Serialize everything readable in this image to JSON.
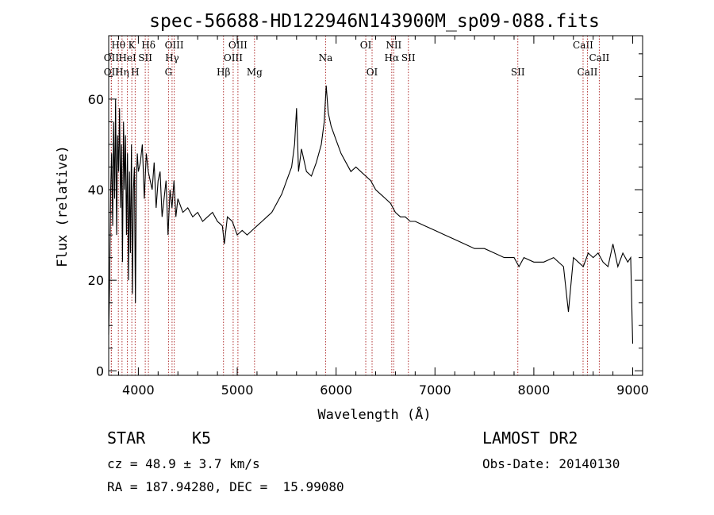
{
  "header": {
    "title": "spec-56688-HD122946N143900M_sp09-088.fits"
  },
  "footer": {
    "class_label": "STAR",
    "subclass": "K5",
    "survey": "LAMOST DR2",
    "cz": "cz = 48.9 ± 3.7 km/s",
    "obs_date": "Obs-Date: 20140130",
    "coords": "RA = 187.94280, DEC =  15.99080"
  },
  "chart_data": {
    "type": "line",
    "title": "spec-56688-HD122946N143900M_sp09-088.fits",
    "xlabel": "Wavelength (Å)",
    "ylabel": "Flux (relative)",
    "xlim": [
      3700,
      9100
    ],
    "ylim": [
      -1,
      74
    ],
    "xticks": [
      4000,
      5000,
      6000,
      7000,
      8000,
      9000
    ],
    "yticks": [
      0,
      20,
      40,
      60
    ],
    "grid": false,
    "line_color": "#000000",
    "marker_color": "#b03030",
    "spectral_lines": [
      {
        "name": "OII",
        "wavelength": 3727,
        "row": 3
      },
      {
        "name": "Hθ",
        "wavelength": 3798,
        "row": 1
      },
      {
        "name": "OII",
        "wavelength": 3727,
        "row": 2
      },
      {
        "name": "Hη",
        "wavelength": 3835,
        "row": 3
      },
      {
        "name": "HeI",
        "wavelength": 3889,
        "row": 2
      },
      {
        "name": "K",
        "wavelength": 3934,
        "row": 1
      },
      {
        "name": "H",
        "wavelength": 3968,
        "row": 3
      },
      {
        "name": "SII",
        "wavelength": 4070,
        "row": 2
      },
      {
        "name": "Hδ",
        "wavelength": 4102,
        "row": 1
      },
      {
        "name": "G",
        "wavelength": 4305,
        "row": 3
      },
      {
        "name": "Hγ",
        "wavelength": 4341,
        "row": 2
      },
      {
        "name": "OIII",
        "wavelength": 4363,
        "row": 1
      },
      {
        "name": "Hβ",
        "wavelength": 4861,
        "row": 3
      },
      {
        "name": "OIII",
        "wavelength": 4959,
        "row": 2
      },
      {
        "name": "OIII",
        "wavelength": 5007,
        "row": 1
      },
      {
        "name": "Mg",
        "wavelength": 5175,
        "row": 3
      },
      {
        "name": "Na",
        "wavelength": 5894,
        "row": 2
      },
      {
        "name": "OI",
        "wavelength": 6300,
        "row": 1
      },
      {
        "name": "OI",
        "wavelength": 6364,
        "row": 3
      },
      {
        "name": "NII",
        "wavelength": 6583,
        "row": 1
      },
      {
        "name": "Hα",
        "wavelength": 6563,
        "row": 2
      },
      {
        "name": "SII",
        "wavelength": 6731,
        "row": 2
      },
      {
        "name": "SII",
        "wavelength": 7838,
        "row": 3
      },
      {
        "name": "CaII",
        "wavelength": 8498,
        "row": 1
      },
      {
        "name": "CaII",
        "wavelength": 8542,
        "row": 3
      },
      {
        "name": "CaII",
        "wavelength": 8662,
        "row": 2
      }
    ],
    "series": [
      {
        "x": [
          3700,
          3710,
          3720,
          3730,
          3740,
          3750,
          3760,
          3770,
          3780,
          3790,
          3800,
          3810,
          3820,
          3830,
          3840,
          3850,
          3860,
          3870,
          3880,
          3890,
          3900,
          3910,
          3920,
          3930,
          3940,
          3950,
          3960,
          3970,
          3980,
          3990,
          4000,
          4020,
          4040,
          4060,
          4080,
          4100,
          4120,
          4140,
          4160,
          4180,
          4200,
          4220,
          4240,
          4260,
          4280,
          4300,
          4320,
          4340,
          4360,
          4380,
          4400,
          4450,
          4500,
          4550,
          4600,
          4650,
          4700,
          4750,
          4800,
          4850,
          4870,
          4900,
          4950,
          5000,
          5050,
          5100,
          5150,
          5200,
          5250,
          5300,
          5350,
          5400,
          5450,
          5500,
          5550,
          5580,
          5600,
          5620,
          5650,
          5700,
          5750,
          5800,
          5850,
          5880,
          5900,
          5920,
          5950,
          6000,
          6050,
          6100,
          6150,
          6200,
          6250,
          6300,
          6350,
          6400,
          6450,
          6500,
          6550,
          6600,
          6650,
          6700,
          6750,
          6800,
          6900,
          7000,
          7100,
          7200,
          7300,
          7400,
          7500,
          7600,
          7700,
          7800,
          7850,
          7900,
          8000,
          8100,
          8200,
          8300,
          8350,
          8400,
          8450,
          8500,
          8550,
          8600,
          8650,
          8700,
          8750,
          8800,
          8850,
          8900,
          8950,
          8980,
          9000
        ],
        "y": [
          8,
          20,
          40,
          48,
          32,
          55,
          38,
          60,
          30,
          52,
          44,
          58,
          36,
          50,
          24,
          55,
          40,
          52,
          30,
          48,
          20,
          44,
          26,
          50,
          17,
          40,
          45,
          15,
          42,
          48,
          44,
          46,
          50,
          38,
          48,
          44,
          42,
          40,
          46,
          36,
          42,
          44,
          34,
          38,
          42,
          30,
          40,
          36,
          42,
          34,
          38,
          35,
          36,
          34,
          35,
          33,
          34,
          35,
          33,
          32,
          28,
          34,
          33,
          30,
          31,
          30,
          31,
          32,
          33,
          34,
          35,
          37,
          39,
          42,
          45,
          50,
          58,
          44,
          49,
          44,
          43,
          46,
          50,
          55,
          63,
          57,
          54,
          51,
          48,
          46,
          44,
          45,
          44,
          43,
          42,
          40,
          39,
          38,
          37,
          35,
          34,
          34,
          33,
          33,
          32,
          31,
          30,
          29,
          28,
          27,
          27,
          26,
          25,
          25,
          23,
          25,
          24,
          24,
          25,
          23,
          13,
          25,
          24,
          23,
          26,
          25,
          26,
          24,
          23,
          28,
          23,
          26,
          24,
          25,
          6
        ]
      }
    ]
  }
}
